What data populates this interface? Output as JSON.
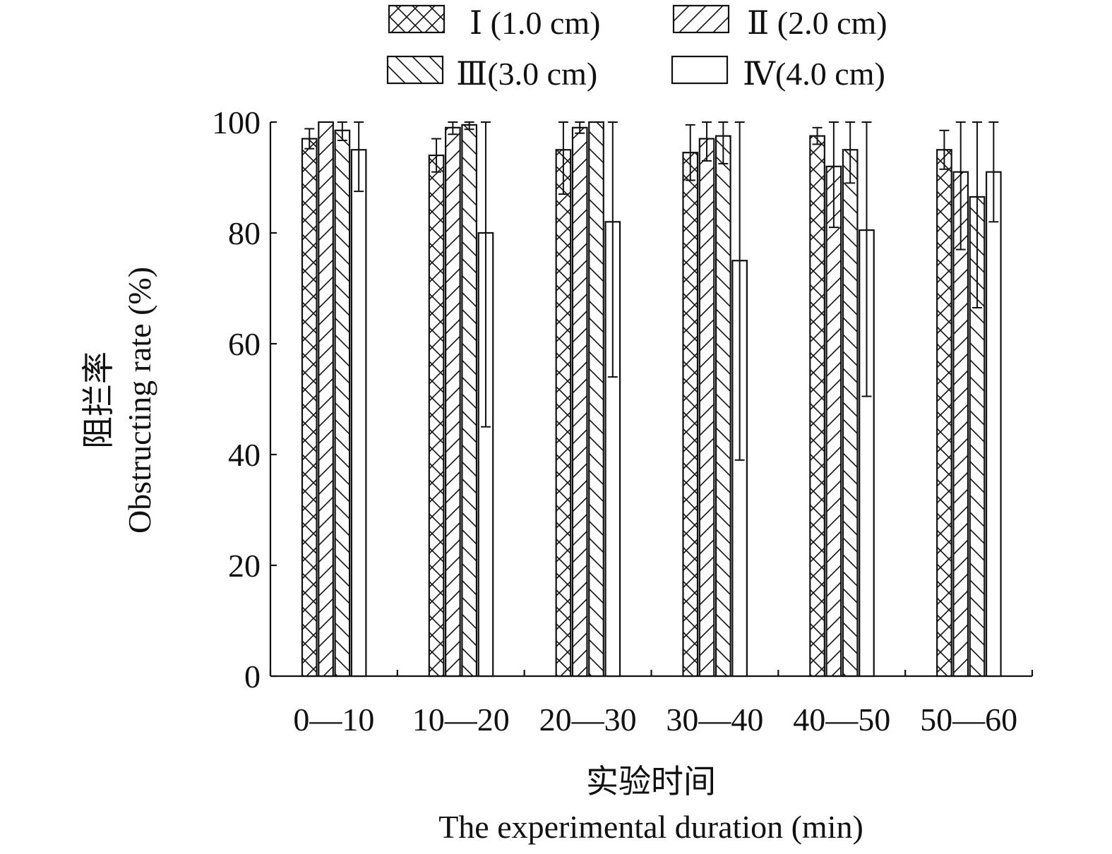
{
  "chart_data": {
    "type": "bar",
    "categories": [
      "0—10",
      "10—20",
      "20—30",
      "30—40",
      "40—50",
      "50—60"
    ],
    "series": [
      {
        "name": "Ⅰ (1.0 cm)",
        "pattern": "crosshatch",
        "values": [
          97.0,
          94.0,
          95.0,
          94.5,
          97.5,
          95.0
        ],
        "errors": [
          1.8,
          3.0,
          8.0,
          5.0,
          1.5,
          3.5
        ]
      },
      {
        "name": "Ⅱ (2.0 cm)",
        "pattern": "forward-diagonal",
        "values": [
          100.0,
          99.0,
          99.0,
          97.0,
          92.0,
          91.0
        ],
        "errors": [
          0.0,
          1.2,
          1.0,
          4.0,
          11.0,
          14.0
        ]
      },
      {
        "name": "Ⅲ(3.0 cm)",
        "pattern": "backward-diagonal",
        "values": [
          98.5,
          99.5,
          100.0,
          97.5,
          95.0,
          86.5
        ],
        "errors": [
          1.8,
          0.8,
          0.0,
          5.0,
          6.0,
          20.0
        ]
      },
      {
        "name": "Ⅳ(4.0 cm)",
        "pattern": "none",
        "values": [
          95.0,
          80.0,
          82.0,
          75.0,
          80.5,
          91.0
        ],
        "errors": [
          7.5,
          35.0,
          28.0,
          36.0,
          30.0,
          9.0
        ]
      }
    ],
    "ylabel": "阻拦率",
    "ylabel_en": "Obstructing rate (%)",
    "xlabel": "实验时间",
    "xlabel_en": "The experimental duration (min)",
    "yticks": [
      0,
      20,
      40,
      60,
      80,
      100
    ],
    "ylim": [
      0,
      100
    ],
    "grid": false,
    "legend_position": "top"
  }
}
